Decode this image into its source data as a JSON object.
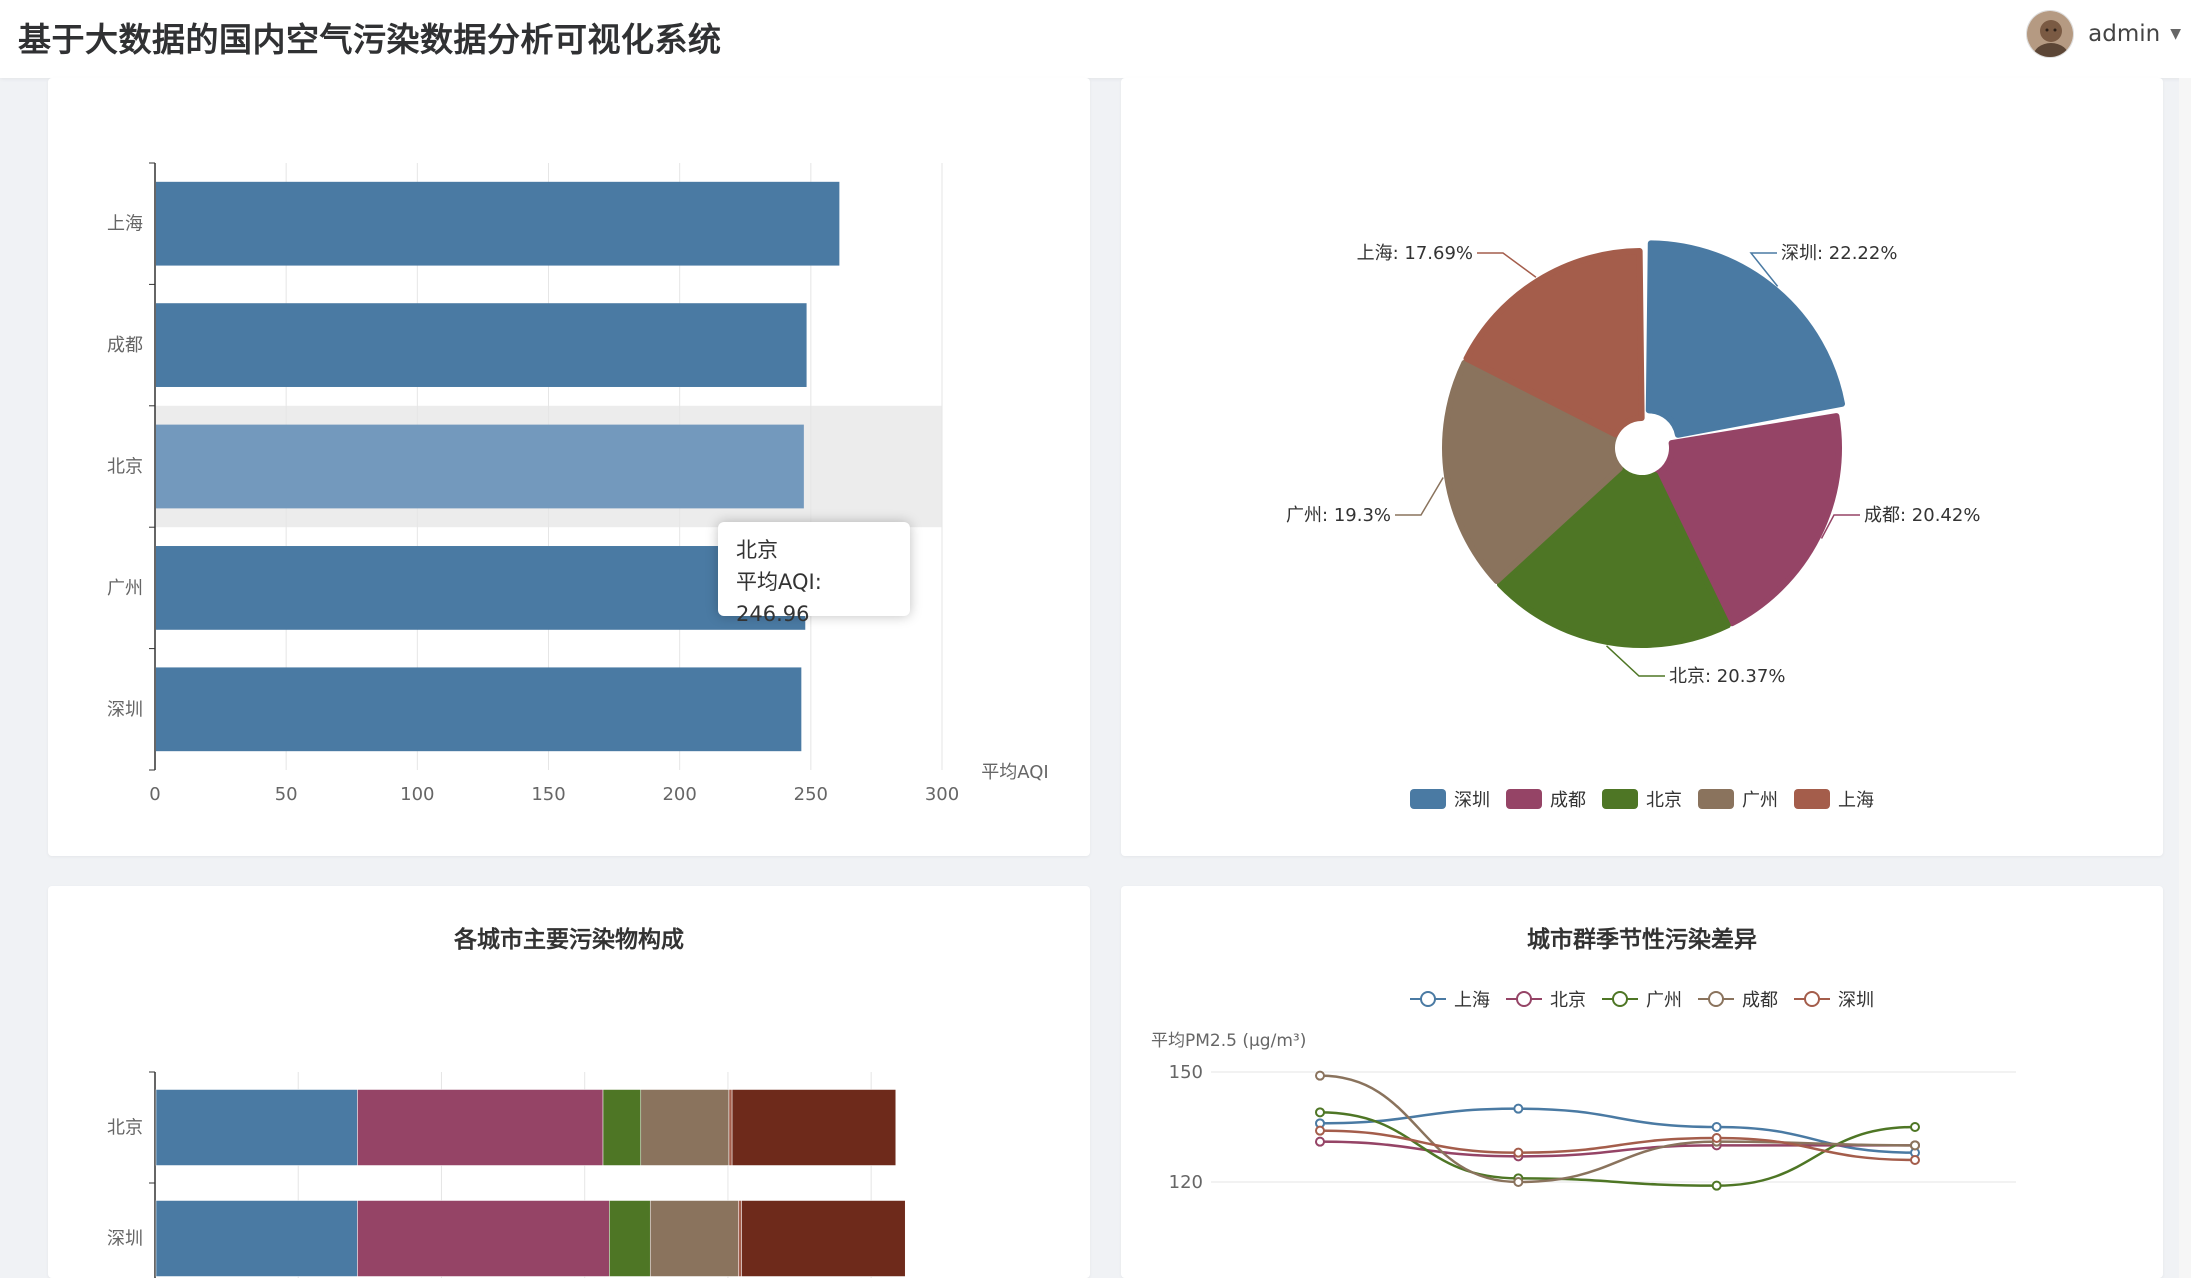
{
  "header": {
    "title": "基于大数据的国内空气污染数据分析可视化系统",
    "username": "admin"
  },
  "colors": {
    "blue": "#4a7aa3",
    "purple": "#954466",
    "green": "#4e7625",
    "brown": "#8a735d",
    "rust": "#a45d4b",
    "darkred": "#6e2a1b"
  },
  "charts": {
    "aqi_bar": {
      "tooltip": {
        "name": "北京",
        "value_text": "平均AQI: 246.96"
      },
      "chart_data": {
        "type": "bar",
        "orientation": "horizontal",
        "categories": [
          "上海",
          "成都",
          "北京",
          "广州",
          "深圳"
        ],
        "values": [
          260.5,
          248.0,
          246.96,
          247.5,
          246.0
        ],
        "xlabel": "平均AQI",
        "xlim": [
          0,
          300
        ],
        "xticks": [
          "0",
          "50",
          "100",
          "150",
          "200",
          "250",
          "300"
        ],
        "highlighted": "北京"
      }
    },
    "aqi_pie": {
      "chart_data": {
        "type": "pie",
        "labels": [
          "深圳",
          "成都",
          "北京",
          "广州",
          "上海"
        ],
        "values": [
          22.22,
          20.42,
          20.37,
          19.3,
          17.69
        ],
        "label_texts": [
          "深圳: 22.22%",
          "成都: 20.42%",
          "北京: 20.37%",
          "广州: 19.3%",
          "上海: 17.69%"
        ],
        "legend": "bottom"
      }
    },
    "pollutant_stack": {
      "title": "各城市主要污染物构成",
      "chart_data": {
        "type": "bar",
        "orientation": "horizontal",
        "stacked": true,
        "categories": [
          "北京",
          "深圳"
        ],
        "series": [
          {
            "values": [
              32,
              32
            ]
          },
          {
            "values": [
              39,
              40
            ]
          },
          {
            "values": [
              6,
              6.5
            ]
          },
          {
            "values": [
              14,
              14
            ]
          },
          {
            "values": [
              0.5,
              0.5
            ]
          },
          {
            "values": [
              26,
              26
            ]
          }
        ],
        "xlim": [
          0,
          125
        ]
      }
    },
    "seasonal_line": {
      "title": "城市群季节性污染差异",
      "chart_data": {
        "type": "line",
        "ylabel": "平均PM2.5 (μg/m³)",
        "yticks": [
          "150",
          "120"
        ],
        "ylim": [
          110,
          150
        ],
        "series": [
          {
            "name": "上海",
            "values": [
              136,
              140,
              135,
              128
            ]
          },
          {
            "name": "北京",
            "values": [
              131,
              127,
              130,
              130
            ]
          },
          {
            "name": "广州",
            "values": [
              139,
              121,
              119,
              135
            ]
          },
          {
            "name": "成都",
            "values": [
              149,
              120,
              131,
              130
            ]
          },
          {
            "name": "深圳",
            "values": [
              134,
              128,
              132,
              126
            ]
          }
        ]
      }
    }
  }
}
